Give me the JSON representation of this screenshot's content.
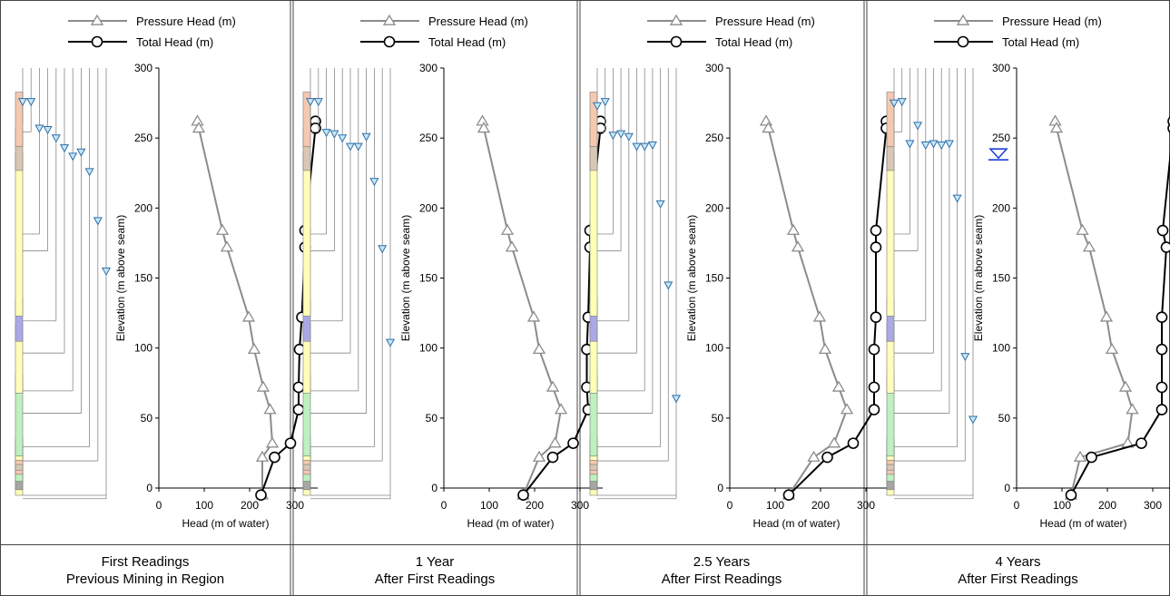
{
  "legend": {
    "pressure": "Pressure Head (m)",
    "total": "Total Head (m)"
  },
  "axes": {
    "ylabel": "Elevation (m above seam)",
    "xlabel": "Head (m of water)",
    "xticks": [
      "0",
      "100",
      "200",
      "300"
    ],
    "yticks": [
      "0",
      "50",
      "100",
      "150",
      "200",
      "250",
      "300"
    ]
  },
  "strata_colors": {
    "salmon": "#f4c9b0",
    "tan": "#d8c7b4",
    "yellow": "#ffffb8",
    "blue": "#a9a9e6",
    "green": "#bff0bf",
    "gray": "#a6a6a6"
  },
  "strata": [
    {
      "from": 0,
      "to": 4,
      "color": "yellow"
    },
    {
      "from": 4,
      "to": 10,
      "color": "gray"
    },
    {
      "from": 10,
      "to": 15,
      "color": "green"
    },
    {
      "from": 15,
      "to": 18,
      "color": "salmon"
    },
    {
      "from": 18,
      "to": 22,
      "color": "tan"
    },
    {
      "from": 22,
      "to": 25,
      "color": "salmon"
    },
    {
      "from": 25,
      "to": 28,
      "color": "yellow"
    },
    {
      "from": 28,
      "to": 73,
      "color": "green"
    },
    {
      "from": 73,
      "to": 110,
      "color": "yellow"
    },
    {
      "from": 110,
      "to": 128,
      "color": "blue"
    },
    {
      "from": 128,
      "to": 232,
      "color": "yellow"
    },
    {
      "from": 232,
      "to": 249,
      "color": "tan"
    },
    {
      "from": 249,
      "to": 275,
      "color": "salmon"
    }
  ],
  "chart_data": [
    {
      "type": "line",
      "caption": [
        "First Readings",
        "Previous Mining in Region"
      ],
      "xlim": [
        0,
        350
      ],
      "ylim": [
        0,
        300
      ],
      "series": [
        {
          "name": "Pressure Head (m)",
          "points": [
            [
              85,
              262
            ],
            [
              88,
              257
            ],
            [
              140,
              184
            ],
            [
              150,
              172
            ],
            [
              198,
              122
            ],
            [
              210,
              99
            ],
            [
              230,
              72
            ],
            [
              245,
              56
            ],
            [
              250,
              32
            ],
            [
              228,
              22
            ],
            [
              228,
              -5
            ]
          ]
        },
        {
          "name": "Total Head (m)",
          "points": [
            [
              345,
              262
            ],
            [
              345,
              257
            ],
            [
              322,
              184
            ],
            [
              322,
              172
            ],
            [
              315,
              122
            ],
            [
              310,
              99
            ],
            [
              308,
              72
            ],
            [
              308,
              56
            ],
            [
              290,
              32
            ],
            [
              255,
              22
            ],
            [
              225,
              -5
            ]
          ]
        }
      ],
      "piezometer_levels": [
        276,
        276,
        257,
        256,
        250,
        243,
        237,
        240,
        226,
        191,
        155
      ]
    },
    {
      "type": "line",
      "caption": [
        "1 Year",
        "After First Readings"
      ],
      "xlim": [
        0,
        350
      ],
      "ylim": [
        0,
        300
      ],
      "series": [
        {
          "name": "Pressure Head (m)",
          "points": [
            [
              85,
              262
            ],
            [
              88,
              257
            ],
            [
              140,
              184
            ],
            [
              150,
              172
            ],
            [
              198,
              122
            ],
            [
              210,
              99
            ],
            [
              240,
              72
            ],
            [
              258,
              56
            ],
            [
              245,
              32
            ],
            [
              210,
              22
            ],
            [
              175,
              -5
            ]
          ]
        },
        {
          "name": "Total Head (m)",
          "points": [
            [
              345,
              262
            ],
            [
              345,
              257
            ],
            [
              322,
              184
            ],
            [
              322,
              172
            ],
            [
              318,
              122
            ],
            [
              315,
              99
            ],
            [
              315,
              72
            ],
            [
              318,
              56
            ],
            [
              285,
              32
            ],
            [
              240,
              22
            ],
            [
              175,
              -5
            ]
          ]
        }
      ],
      "piezometer_levels": [
        276,
        276,
        254,
        253,
        250,
        244,
        244,
        251,
        219,
        171,
        104
      ]
    },
    {
      "type": "line",
      "caption": [
        "2.5 Years",
        "After First Readings"
      ],
      "xlim": [
        0,
        350
      ],
      "ylim": [
        0,
        300
      ],
      "series": [
        {
          "name": "Pressure Head (m)",
          "points": [
            [
              80,
              262
            ],
            [
              85,
              257
            ],
            [
              140,
              184
            ],
            [
              150,
              172
            ],
            [
              198,
              122
            ],
            [
              210,
              99
            ],
            [
              240,
              72
            ],
            [
              258,
              56
            ],
            [
              230,
              32
            ],
            [
              185,
              22
            ],
            [
              130,
              -5
            ]
          ]
        },
        {
          "name": "Total Head (m)",
          "points": [
            [
              345,
              262
            ],
            [
              345,
              257
            ],
            [
              322,
              184
            ],
            [
              322,
              172
            ],
            [
              322,
              122
            ],
            [
              318,
              99
            ],
            [
              318,
              72
            ],
            [
              318,
              56
            ],
            [
              272,
              32
            ],
            [
              215,
              22
            ],
            [
              130,
              -5
            ]
          ]
        }
      ],
      "piezometer_levels": [
        273,
        276,
        252,
        253,
        251,
        244,
        244,
        245,
        203,
        145,
        64
      ]
    },
    {
      "type": "line",
      "caption": [
        "4 Years",
        "After First Readings"
      ],
      "xlim": [
        0,
        350
      ],
      "ylim": [
        0,
        300
      ],
      "series": [
        {
          "name": "Pressure Head (m)",
          "points": [
            [
              85,
              262
            ],
            [
              88,
              257
            ],
            [
              145,
              184
            ],
            [
              160,
              172
            ],
            [
              198,
              122
            ],
            [
              210,
              99
            ],
            [
              240,
              72
            ],
            [
              255,
              56
            ],
            [
              245,
              32
            ],
            [
              140,
              22
            ],
            [
              120,
              -5
            ]
          ]
        },
        {
          "name": "Total Head (m)",
          "points": [
            [
              345,
              262
            ],
            [
              345,
              257
            ],
            [
              322,
              184
            ],
            [
              330,
              172
            ],
            [
              320,
              122
            ],
            [
              320,
              99
            ],
            [
              320,
              72
            ],
            [
              320,
              56
            ],
            [
              275,
              32
            ],
            [
              165,
              22
            ],
            [
              120,
              -5
            ]
          ]
        }
      ],
      "piezometer_levels": [
        275,
        276,
        246,
        259,
        245,
        246,
        245,
        246,
        207,
        94,
        49
      ],
      "water_table": 237
    }
  ]
}
